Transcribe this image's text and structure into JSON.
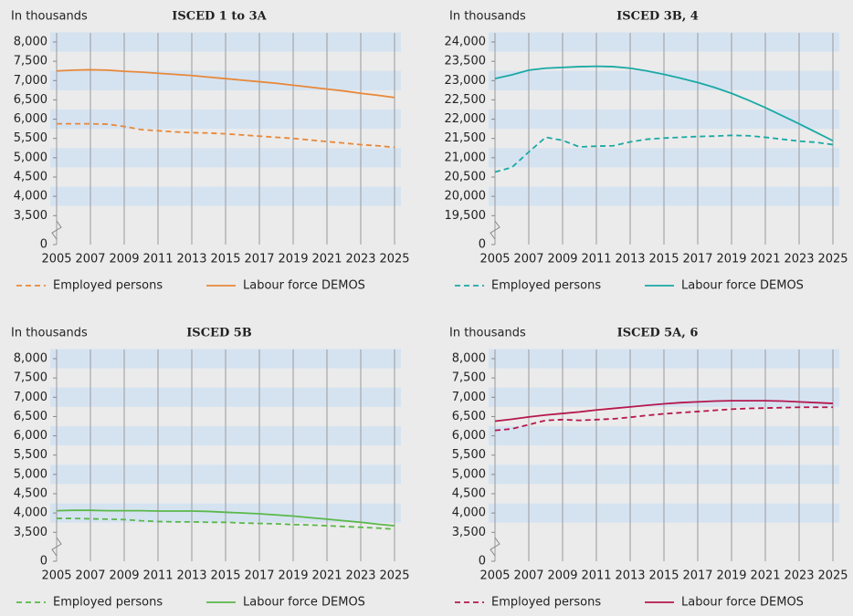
{
  "chart_data": [
    {
      "type": "line",
      "title": "ISCED 1 to 3A",
      "y_label": "In thousands",
      "x": [
        2005,
        2006,
        2007,
        2008,
        2009,
        2010,
        2011,
        2012,
        2013,
        2014,
        2015,
        2016,
        2017,
        2018,
        2019,
        2020,
        2021,
        2022,
        2023,
        2024,
        2025
      ],
      "xticks": [
        2005,
        2007,
        2009,
        2011,
        2013,
        2015,
        2017,
        2019,
        2021,
        2023,
        2025
      ],
      "xlim": [
        2005,
        2025
      ],
      "ylim": [
        0,
        8000
      ],
      "yticks": [
        0,
        {
          "value": 3500,
          "label": "3,500"
        },
        {
          "value": 4000,
          "label": "4,000"
        },
        {
          "value": 4500,
          "label": "4,500"
        },
        {
          "value": 5000,
          "label": "5,000"
        },
        {
          "value": 5500,
          "label": "5,500"
        },
        {
          "value": 6000,
          "label": "6,000"
        },
        {
          "value": 6500,
          "label": "6,500"
        },
        {
          "value": 7000,
          "label": "7,000"
        },
        {
          "value": 7500,
          "label": "7,500"
        },
        {
          "value": 8000,
          "label": "8,000"
        }
      ],
      "grid": true,
      "series": [
        {
          "name": "Employed persons",
          "color": "#e8883a",
          "style": "dashed",
          "values": [
            5880,
            5880,
            5880,
            5870,
            5810,
            5730,
            5700,
            5670,
            5650,
            5640,
            5620,
            5590,
            5560,
            5530,
            5500,
            5460,
            5420,
            5380,
            5340,
            5310,
            5270
          ]
        },
        {
          "name": "Labour force DEMOS",
          "color": "#e8883a",
          "style": "solid",
          "values": [
            7250,
            7270,
            7280,
            7270,
            7240,
            7220,
            7190,
            7160,
            7130,
            7090,
            7050,
            7010,
            6970,
            6930,
            6880,
            6830,
            6780,
            6730,
            6670,
            6620,
            6560
          ]
        }
      ]
    },
    {
      "type": "line",
      "title": "ISCED 3B, 4",
      "y_label": "In thousands",
      "x": [
        2005,
        2006,
        2007,
        2008,
        2009,
        2010,
        2011,
        2012,
        2013,
        2014,
        2015,
        2016,
        2017,
        2018,
        2019,
        2020,
        2021,
        2022,
        2023,
        2024,
        2025
      ],
      "xticks": [
        2005,
        2007,
        2009,
        2011,
        2013,
        2015,
        2017,
        2019,
        2021,
        2023,
        2025
      ],
      "xlim": [
        2005,
        2025
      ],
      "ylim": [
        0,
        24000
      ],
      "yticks": [
        0,
        {
          "value": 19500,
          "label": "19,500"
        },
        {
          "value": 20000,
          "label": "20,000"
        },
        {
          "value": 20500,
          "label": "20,500"
        },
        {
          "value": 21000,
          "label": "21,000"
        },
        {
          "value": 21500,
          "label": "21,500"
        },
        {
          "value": 22000,
          "label": "22,000"
        },
        {
          "value": 22500,
          "label": "22,500"
        },
        {
          "value": 23000,
          "label": "23,000"
        },
        {
          "value": 23500,
          "label": "23,500"
        },
        {
          "value": 24000,
          "label": "24,000"
        }
      ],
      "grid": true,
      "series": [
        {
          "name": "Employed persons",
          "color": "#1aa9a5",
          "style": "dashed",
          "values": [
            20630,
            20750,
            21150,
            21530,
            21450,
            21280,
            21300,
            21310,
            21410,
            21480,
            21510,
            21530,
            21550,
            21560,
            21580,
            21570,
            21530,
            21480,
            21430,
            21400,
            21340
          ]
        },
        {
          "name": "Labour force DEMOS",
          "color": "#1aa9a5",
          "style": "solid",
          "values": [
            23050,
            23150,
            23270,
            23320,
            23340,
            23360,
            23370,
            23360,
            23320,
            23250,
            23160,
            23060,
            22950,
            22820,
            22670,
            22490,
            22300,
            22090,
            21880,
            21660,
            21440
          ]
        }
      ]
    },
    {
      "type": "line",
      "title": "ISCED 5B",
      "y_label": "In thousands",
      "x": [
        2005,
        2006,
        2007,
        2008,
        2009,
        2010,
        2011,
        2012,
        2013,
        2014,
        2015,
        2016,
        2017,
        2018,
        2019,
        2020,
        2021,
        2022,
        2023,
        2024,
        2025
      ],
      "xticks": [
        2005,
        2007,
        2009,
        2011,
        2013,
        2015,
        2017,
        2019,
        2021,
        2023,
        2025
      ],
      "xlim": [
        2005,
        2025
      ],
      "ylim": [
        0,
        8000
      ],
      "yticks": [
        0,
        {
          "value": 3500,
          "label": "3,500"
        },
        {
          "value": 4000,
          "label": "4,000"
        },
        {
          "value": 4500,
          "label": "4,500"
        },
        {
          "value": 5000,
          "label": "5,000"
        },
        {
          "value": 5500,
          "label": "5,500"
        },
        {
          "value": 6000,
          "label": "6,000"
        },
        {
          "value": 6500,
          "label": "6,500"
        },
        {
          "value": 7000,
          "label": "7,000"
        },
        {
          "value": 7500,
          "label": "7,500"
        },
        {
          "value": 8000,
          "label": "8,000"
        }
      ],
      "grid": true,
      "series": [
        {
          "name": "Employed persons",
          "color": "#5bb84a",
          "style": "dashed",
          "values": [
            3860,
            3860,
            3850,
            3840,
            3830,
            3800,
            3780,
            3770,
            3770,
            3760,
            3760,
            3740,
            3730,
            3720,
            3700,
            3690,
            3670,
            3650,
            3630,
            3610,
            3580
          ]
        },
        {
          "name": "Labour force DEMOS",
          "color": "#5bb84a",
          "style": "solid",
          "values": [
            4060,
            4070,
            4070,
            4060,
            4060,
            4060,
            4050,
            4050,
            4050,
            4040,
            4020,
            4000,
            3980,
            3950,
            3920,
            3880,
            3840,
            3800,
            3760,
            3710,
            3670
          ]
        }
      ]
    },
    {
      "type": "line",
      "title": "ISCED 5A, 6",
      "y_label": "In thousands",
      "x": [
        2005,
        2006,
        2007,
        2008,
        2009,
        2010,
        2011,
        2012,
        2013,
        2014,
        2015,
        2016,
        2017,
        2018,
        2019,
        2020,
        2021,
        2022,
        2023,
        2024,
        2025
      ],
      "xticks": [
        2005,
        2007,
        2009,
        2011,
        2013,
        2015,
        2017,
        2019,
        2021,
        2023,
        2025
      ],
      "xlim": [
        2005,
        2025
      ],
      "ylim": [
        0,
        8000
      ],
      "yticks": [
        0,
        {
          "value": 3500,
          "label": "3,500"
        },
        {
          "value": 4000,
          "label": "4,000"
        },
        {
          "value": 4500,
          "label": "4,500"
        },
        {
          "value": 5000,
          "label": "5,000"
        },
        {
          "value": 5500,
          "label": "5,500"
        },
        {
          "value": 6000,
          "label": "6,000"
        },
        {
          "value": 6500,
          "label": "6,500"
        },
        {
          "value": 7000,
          "label": "7,000"
        },
        {
          "value": 7500,
          "label": "7,500"
        },
        {
          "value": 8000,
          "label": "8,000"
        }
      ],
      "grid": true,
      "series": [
        {
          "name": "Employed persons",
          "color": "#b5174e",
          "style": "dashed",
          "values": [
            6140,
            6180,
            6290,
            6400,
            6420,
            6400,
            6420,
            6440,
            6480,
            6530,
            6570,
            6600,
            6630,
            6660,
            6690,
            6710,
            6720,
            6730,
            6740,
            6740,
            6740
          ]
        },
        {
          "name": "Labour force DEMOS",
          "color": "#b5174e",
          "style": "solid",
          "values": [
            6380,
            6430,
            6490,
            6540,
            6580,
            6620,
            6670,
            6710,
            6750,
            6790,
            6830,
            6860,
            6880,
            6900,
            6910,
            6910,
            6910,
            6900,
            6880,
            6860,
            6840
          ]
        }
      ]
    }
  ]
}
